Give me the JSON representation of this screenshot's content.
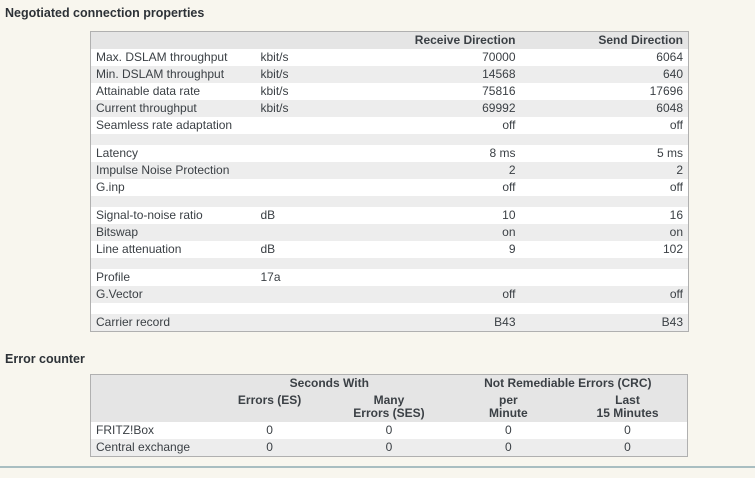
{
  "theme": {
    "page-bg": "#f8f6ee",
    "title-color": "#2d3237",
    "text-color": "#3b4045",
    "table-header-bg": "#e5e5e5",
    "row-alt-bg": "#ededed",
    "table-border": "#b0b0b0",
    "divider-color": "#a9bec1"
  },
  "negotiated": {
    "title": "Negotiated connection properties",
    "col_headers": {
      "receive": "Receive Direction",
      "send": "Send Direction"
    },
    "rows": [
      {
        "label": "Max. DSLAM throughput",
        "unit": "kbit/s",
        "receive": "70000",
        "send": "6064"
      },
      {
        "label": "Min. DSLAM throughput",
        "unit": "kbit/s",
        "receive": "14568",
        "send": "640"
      },
      {
        "label": "Attainable data rate",
        "unit": "kbit/s",
        "receive": "75816",
        "send": "17696"
      },
      {
        "label": "Current throughput",
        "unit": "kbit/s",
        "receive": "69992",
        "send": "6048"
      },
      {
        "label": "Seamless rate adaptation",
        "unit": "",
        "receive": "off",
        "send": "off"
      },
      {
        "spacer": true
      },
      {
        "label": "Latency",
        "unit": "",
        "receive": "8 ms",
        "send": "5 ms"
      },
      {
        "label": "Impulse Noise Protection",
        "unit": "",
        "receive": "2",
        "send": "2"
      },
      {
        "label": "G.inp",
        "unit": "",
        "receive": "off",
        "send": "off"
      },
      {
        "spacer": true
      },
      {
        "label": "Signal-to-noise ratio",
        "unit": "dB",
        "receive": "10",
        "send": "16"
      },
      {
        "label": "Bitswap",
        "unit": "",
        "receive": "on",
        "send": "on"
      },
      {
        "label": "Line attenuation",
        "unit": "dB",
        "receive": "9",
        "send": "102"
      },
      {
        "spacer": true
      },
      {
        "label": "Profile",
        "unit": "17a",
        "receive": "",
        "send": ""
      },
      {
        "label": "G.Vector",
        "unit": "",
        "receive": "off",
        "send": "off"
      },
      {
        "spacer": true
      },
      {
        "label": "Carrier record",
        "unit": "",
        "receive": "B43",
        "send": "B43"
      }
    ]
  },
  "error_counter": {
    "title": "Error counter",
    "group_headers": {
      "seconds": "Seconds With",
      "crc": "Not Remediable Errors (CRC)"
    },
    "col_headers": {
      "es": "Errors (ES)",
      "ses": "Many\nErrors (SES)",
      "per_minute": "per\nMinute",
      "last_15": "Last\n15 Minutes"
    },
    "rows": [
      {
        "label": "FRITZ!Box",
        "values": [
          "0",
          "0",
          "0",
          "0"
        ]
      },
      {
        "label": "Central exchange",
        "values": [
          "0",
          "0",
          "0",
          "0"
        ]
      }
    ]
  }
}
